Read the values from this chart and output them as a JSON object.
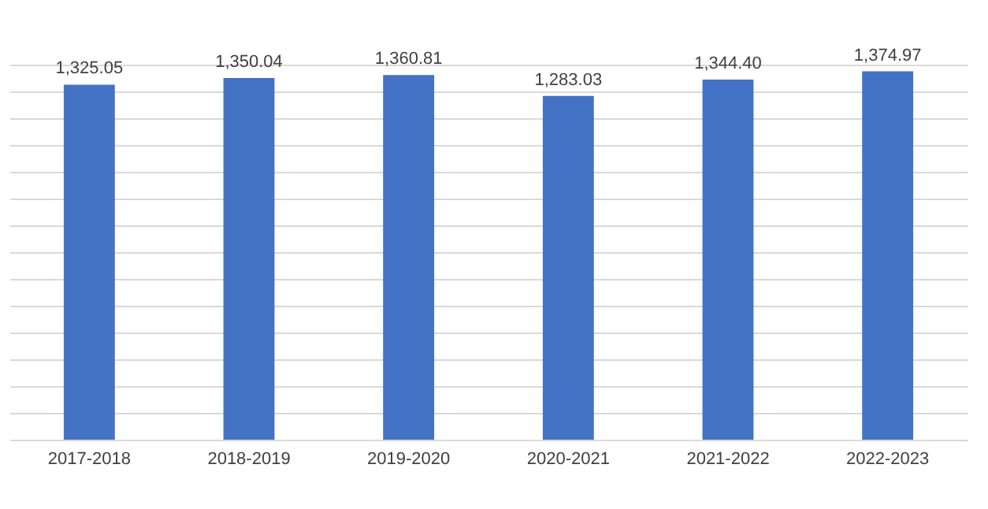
{
  "chart_data": {
    "type": "bar",
    "categories": [
      "2017-2018",
      "2018-2019",
      "2019-2020",
      "2020-2021",
      "2021-2022",
      "2022-2023"
    ],
    "values": [
      1325.05,
      1350.04,
      1360.81,
      1283.03,
      1344.4,
      1374.97
    ],
    "value_labels": [
      "1,325.05",
      "1,350.04",
      "1,360.81",
      "1,283.03",
      "1,344.40",
      "1,374.97"
    ],
    "color": "#4472c4",
    "grid": "y",
    "tick_labels": "x"
  }
}
